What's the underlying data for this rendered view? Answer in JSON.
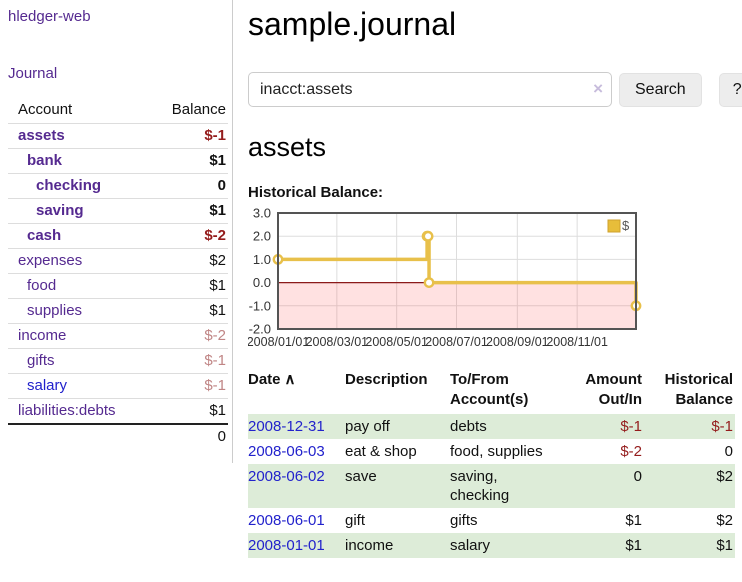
{
  "colors": {
    "accent_purple": "#552a90",
    "link_blue": "#2222cc",
    "negative_strong": "#941c1c",
    "negative_soft": "#c08585",
    "row_stripe_green": "#ddecd8",
    "chart_line_gold": "#e8c04a",
    "chart_border": "#545454"
  },
  "sidebar": {
    "brand": "hledger-web",
    "nav": {
      "journal": "Journal"
    },
    "accounts_table": {
      "headers": {
        "account": "Account",
        "balance": "Balance"
      },
      "rows": [
        {
          "name": "assets",
          "depth": 1,
          "bold": true,
          "balance": "$-1",
          "bclass": "neg"
        },
        {
          "name": "bank",
          "depth": 2,
          "bold": true,
          "balance": "$1",
          "bclass": ""
        },
        {
          "name": "checking",
          "depth": 3,
          "bold": true,
          "balance": "0",
          "bclass": ""
        },
        {
          "name": "saving",
          "depth": 3,
          "bold": true,
          "balance": "$1",
          "bclass": ""
        },
        {
          "name": "cash",
          "depth": 2,
          "bold": true,
          "balance": "$-2",
          "bclass": "neg"
        },
        {
          "name": "expenses",
          "depth": 1,
          "bold": false,
          "balance": "$2",
          "bclass": ""
        },
        {
          "name": "food",
          "depth": 2,
          "bold": false,
          "balance": "$1",
          "bclass": ""
        },
        {
          "name": "supplies",
          "depth": 2,
          "bold": false,
          "balance": "$1",
          "bclass": ""
        },
        {
          "name": "income",
          "depth": 1,
          "bold": false,
          "balance": "$-2",
          "bclass": "negsoft"
        },
        {
          "name": "gifts",
          "depth": 2,
          "bold": false,
          "balance": "$-1",
          "bclass": "negsoft"
        },
        {
          "name": "salary",
          "depth": 2,
          "bold": false,
          "balance": "$-1",
          "bclass": "negsoft",
          "link": "blue"
        },
        {
          "name": "liabilities:debts",
          "depth": 1,
          "bold": false,
          "balance": "$1",
          "bclass": ""
        }
      ],
      "total": "0"
    }
  },
  "main": {
    "title": "sample.journal",
    "search": {
      "value": "inacct:assets",
      "clear_icon": "×",
      "button_label": "Search",
      "help_label": "?"
    },
    "account_heading": "assets",
    "chart_label": "Historical Balance:",
    "register_table": {
      "headers": {
        "date": "Date",
        "sort_icon": "∧",
        "description": "Description",
        "accounts": "To/From Account(s)",
        "amount": "Amount Out/In",
        "balance": "Historical Balance"
      },
      "rows": [
        {
          "date": "2008-12-31",
          "desc": "pay off",
          "accounts": "debts",
          "amount": "$-1",
          "amount_neg": true,
          "balance": "$-1",
          "balance_neg": true,
          "shaded": true
        },
        {
          "date": "2008-06-03",
          "desc": "eat & shop",
          "accounts": "food, supplies",
          "amount": "$-2",
          "amount_neg": true,
          "balance": "0",
          "balance_neg": false,
          "shaded": false
        },
        {
          "date": "2008-06-02",
          "desc": "save",
          "accounts": "saving, checking",
          "amount": "0",
          "amount_neg": false,
          "balance": "$2",
          "balance_neg": false,
          "shaded": true
        },
        {
          "date": "2008-06-01",
          "desc": "gift",
          "accounts": "gifts",
          "amount": "$1",
          "amount_neg": false,
          "balance": "$2",
          "balance_neg": false,
          "shaded": false
        },
        {
          "date": "2008-01-01",
          "desc": "income",
          "accounts": "salary",
          "amount": "$1",
          "amount_neg": false,
          "balance": "$1",
          "balance_neg": false,
          "shaded": true
        }
      ]
    }
  },
  "chart_data": {
    "type": "line",
    "step": true,
    "title": "Historical Balance",
    "series": [
      {
        "name": "$",
        "color": "#e8c04a",
        "points": [
          [
            "2008/01/01",
            1
          ],
          [
            "2008/06/01",
            2
          ],
          [
            "2008/06/02",
            2
          ],
          [
            "2008/06/03",
            0
          ],
          [
            "2008/12/31",
            -1
          ]
        ]
      }
    ],
    "x_range": [
      "2008/01/01",
      "2008/12/31"
    ],
    "x_ticks": [
      "2008/01/01",
      "2008/03/01",
      "2008/05/01",
      "2008/07/01",
      "2008/09/01",
      "2008/11/01"
    ],
    "y_ticks": [
      3.0,
      2.0,
      1.0,
      0.0,
      -1.0,
      -2.0
    ],
    "ylim": [
      -2,
      3
    ],
    "grid": true,
    "legend": {
      "label": "$",
      "position": "top-right",
      "swatch_fill": "#e7bd3a",
      "swatch_stroke": "#cfa12c"
    },
    "negative_region_fill": "rgba(255,70,70,0.16)",
    "zero_line_color": "#8b1a1a",
    "axis_label_color": "#333",
    "gridline_color": "#dddddd",
    "border_color": "#545454"
  }
}
